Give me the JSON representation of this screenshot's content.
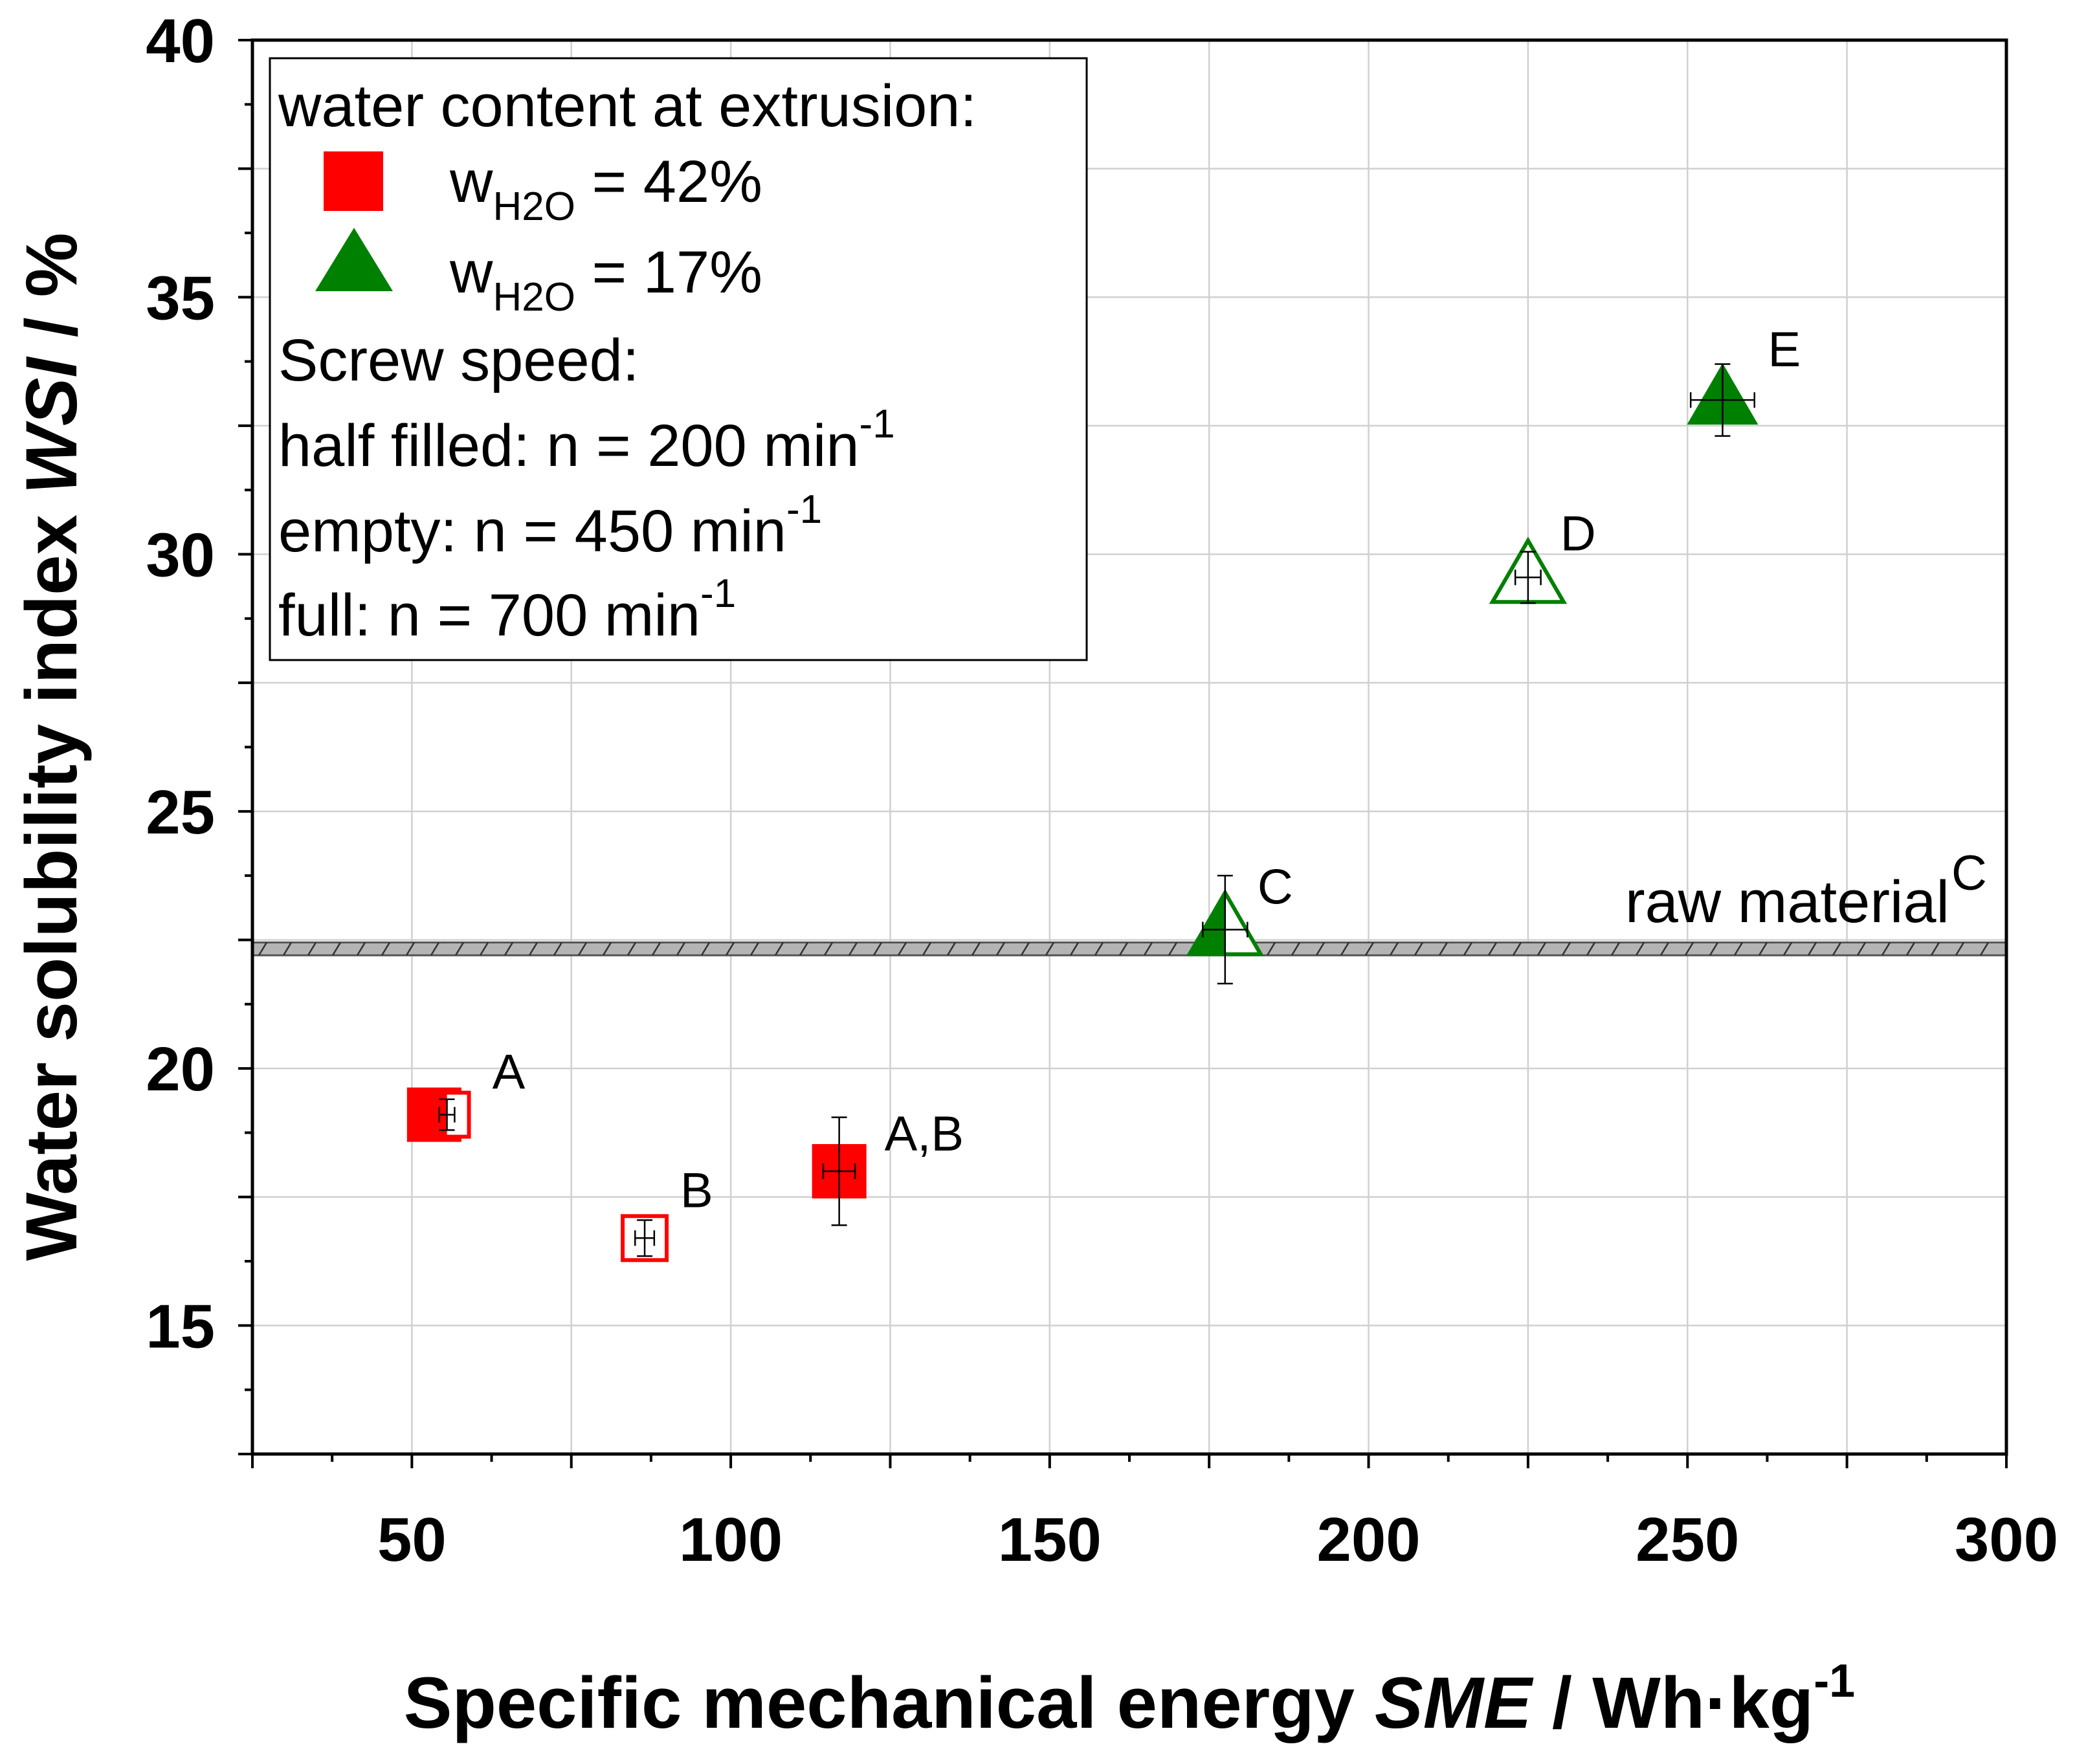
{
  "chart_data": {
    "type": "scatter",
    "xlabel": {
      "prefix": "Specific mechanical energy ",
      "var": "SME",
      "suffix": " / Wh·kg",
      "sup": "-1"
    },
    "ylabel": {
      "prefix": "Water solubility index ",
      "var": "WSI",
      "suffix": " / %"
    },
    "xlim": [
      25,
      300
    ],
    "ylim": [
      12.5,
      40
    ],
    "xticks": [
      50,
      100,
      150,
      200,
      250,
      300
    ],
    "yticks": [
      15,
      20,
      25,
      30,
      35,
      40
    ],
    "grid": true,
    "colors": {
      "red": "#ff0000",
      "green": "#008000",
      "band": "#b4b4b4"
    },
    "legend": {
      "position": "top-left",
      "title": "water content at extrusion:",
      "series": [
        {
          "marker": "square",
          "color": "#ff0000",
          "w": "w",
          "sub": "H2O",
          "value": " = 42%"
        },
        {
          "marker": "triangle",
          "color": "#008000",
          "w": "w",
          "sub": "H2O",
          "value": " = 17%"
        }
      ],
      "screw_title": "Screw speed:",
      "screw_lines": [
        {
          "text": "half filled: n = 200 min",
          "sup": "-1"
        },
        {
          "text": "empty: n = 450 min",
          "sup": "-1"
        },
        {
          "text": "full: n = 700 min",
          "sup": "-1"
        }
      ]
    },
    "raw_material": {
      "label": "raw material",
      "sup": "C",
      "y_low": 22.2,
      "y_high": 22.45
    },
    "series": [
      {
        "name": "wH2O = 42%",
        "marker": "square",
        "color": "#ff0000",
        "points": [
          {
            "fill": "full",
            "x": 53.5,
            "y": 19.1,
            "xerr": 1.2,
            "yerr": 0.3,
            "label": ""
          },
          {
            "fill": "half",
            "x": 55.5,
            "y": 19.1,
            "xerr": 1.2,
            "yerr": 0.3,
            "label": "A"
          },
          {
            "fill": "empty",
            "x": 86.5,
            "y": 16.7,
            "xerr": 1.5,
            "yerr": 0.35,
            "label": "B"
          },
          {
            "fill": "full",
            "x": 117,
            "y": 18.0,
            "xerr": 2.5,
            "yerr": 1.05,
            "label": "A,B"
          }
        ]
      },
      {
        "name": "wH2O = 17%",
        "marker": "triangle",
        "color": "#008000",
        "points": [
          {
            "fill": "half",
            "x": 177.5,
            "y": 22.7,
            "xerr": 3.5,
            "yerr": 1.05,
            "label": "C"
          },
          {
            "fill": "empty",
            "x": 225,
            "y": 29.55,
            "xerr": 2.0,
            "yerr": 0.5,
            "label": "D"
          },
          {
            "fill": "full",
            "x": 255.5,
            "y": 33.0,
            "xerr": 5.0,
            "yerr": 0.7,
            "label": "E"
          }
        ]
      }
    ]
  }
}
